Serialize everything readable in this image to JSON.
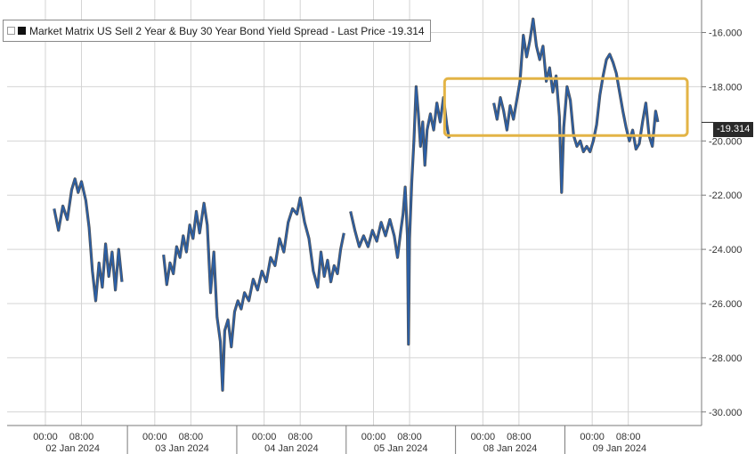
{
  "legend": {
    "text": "Market Matrix US Sell 2 Year & Buy 30 Year Bond Yield Spread - Last Price -19.314"
  },
  "last_price_tag": "-19.314",
  "colors": {
    "series": "#2b5fa6",
    "series_shadow": "#1a1a1a",
    "highlight_box": "#e3b446",
    "grid": "#d4d4d4",
    "axis": "#7a7a7a"
  },
  "chart_data": {
    "type": "line",
    "title": "",
    "xlabel": "",
    "ylabel": "",
    "ylim": [
      -30.5,
      -14.8
    ],
    "yticks": [
      -16,
      -18,
      -20,
      -22,
      -24,
      -26,
      -28,
      -30
    ],
    "ytick_labels": [
      "-16.000",
      "-18.000",
      "-20.000",
      "-22.000",
      "-24.000",
      "-26.000",
      "-28.000",
      "-30.000"
    ],
    "xlim": [
      -0.1,
      6.25
    ],
    "day_labels": [
      {
        "x": 0.5,
        "label": "02 Jan 2024"
      },
      {
        "x": 1.5,
        "label": "03 Jan 2024"
      },
      {
        "x": 2.5,
        "label": "04 Jan 2024"
      },
      {
        "x": 3.5,
        "label": "05 Jan 2024"
      },
      {
        "x": 4.5,
        "label": "08 Jan 2024"
      },
      {
        "x": 5.5,
        "label": "09 Jan 2024"
      }
    ],
    "time_ticks": [
      {
        "x": 0.25,
        "label": "00:00"
      },
      {
        "x": 0.58,
        "label": "08:00"
      },
      {
        "x": 1.25,
        "label": "00:00"
      },
      {
        "x": 1.58,
        "label": "08:00"
      },
      {
        "x": 2.25,
        "label": "00:00"
      },
      {
        "x": 2.58,
        "label": "08:00"
      },
      {
        "x": 3.25,
        "label": "00:00"
      },
      {
        "x": 3.58,
        "label": "08:00"
      },
      {
        "x": 4.25,
        "label": "00:00"
      },
      {
        "x": 4.58,
        "label": "08:00"
      },
      {
        "x": 5.25,
        "label": "00:00"
      },
      {
        "x": 5.58,
        "label": "08:00"
      }
    ],
    "series": [
      {
        "name": "Market Matrix US Sell 2 Year & Buy 30 Year Bond Yield Spread",
        "segments": [
          [
            [
              0.33,
              -22.5
            ],
            [
              0.37,
              -23.3
            ],
            [
              0.41,
              -22.4
            ],
            [
              0.45,
              -22.9
            ],
            [
              0.49,
              -21.8
            ],
            [
              0.52,
              -21.4
            ],
            [
              0.55,
              -21.9
            ],
            [
              0.58,
              -21.5
            ],
            [
              0.62,
              -22.2
            ],
            [
              0.65,
              -23.2
            ],
            [
              0.68,
              -24.8
            ],
            [
              0.71,
              -25.9
            ],
            [
              0.74,
              -24.5
            ],
            [
              0.77,
              -25.4
            ],
            [
              0.8,
              -23.8
            ],
            [
              0.83,
              -25.0
            ],
            [
              0.86,
              -24.1
            ],
            [
              0.89,
              -25.5
            ],
            [
              0.92,
              -24.0
            ],
            [
              0.95,
              -25.2
            ]
          ],
          [
            [
              1.33,
              -24.2
            ],
            [
              1.36,
              -25.3
            ],
            [
              1.39,
              -24.5
            ],
            [
              1.42,
              -24.9
            ],
            [
              1.45,
              -23.9
            ],
            [
              1.48,
              -24.3
            ],
            [
              1.51,
              -23.5
            ],
            [
              1.54,
              -24.1
            ],
            [
              1.57,
              -23.1
            ],
            [
              1.6,
              -23.6
            ],
            [
              1.63,
              -22.6
            ],
            [
              1.66,
              -23.4
            ],
            [
              1.7,
              -22.3
            ],
            [
              1.73,
              -23.1
            ],
            [
              1.76,
              -25.6
            ],
            [
              1.79,
              -24.1
            ],
            [
              1.82,
              -26.5
            ],
            [
              1.85,
              -27.4
            ],
            [
              1.87,
              -29.2
            ],
            [
              1.89,
              -27.0
            ],
            [
              1.92,
              -26.6
            ],
            [
              1.95,
              -27.6
            ],
            [
              1.98,
              -26.3
            ],
            [
              2.01,
              -25.9
            ],
            [
              2.04,
              -26.2
            ],
            [
              2.07,
              -25.6
            ],
            [
              2.11,
              -25.9
            ],
            [
              2.15,
              -25.1
            ],
            [
              2.19,
              -25.5
            ],
            [
              2.23,
              -24.8
            ],
            [
              2.27,
              -25.2
            ],
            [
              2.31,
              -24.3
            ],
            [
              2.35,
              -24.6
            ],
            [
              2.39,
              -23.6
            ],
            [
              2.43,
              -24.1
            ],
            [
              2.47,
              -23.0
            ],
            [
              2.51,
              -22.5
            ],
            [
              2.55,
              -22.7
            ],
            [
              2.58,
              -22.1
            ],
            [
              2.62,
              -23.0
            ],
            [
              2.66,
              -23.6
            ],
            [
              2.7,
              -24.8
            ],
            [
              2.74,
              -25.4
            ],
            [
              2.77,
              -24.1
            ],
            [
              2.8,
              -25.0
            ],
            [
              2.83,
              -24.4
            ],
            [
              2.86,
              -25.2
            ],
            [
              2.89,
              -24.6
            ],
            [
              2.92,
              -24.9
            ],
            [
              2.95,
              -24.0
            ],
            [
              2.98,
              -23.4
            ]
          ],
          [
            [
              3.04,
              -22.6
            ],
            [
              3.08,
              -23.3
            ],
            [
              3.12,
              -23.9
            ],
            [
              3.16,
              -23.5
            ],
            [
              3.2,
              -23.9
            ],
            [
              3.24,
              -23.3
            ],
            [
              3.28,
              -23.7
            ],
            [
              3.32,
              -23.0
            ],
            [
              3.36,
              -23.5
            ],
            [
              3.4,
              -22.9
            ],
            [
              3.44,
              -23.5
            ],
            [
              3.47,
              -24.3
            ],
            [
              3.5,
              -23.3
            ],
            [
              3.52,
              -22.7
            ],
            [
              3.54,
              -21.7
            ],
            [
              3.56,
              -23.5
            ],
            [
              3.57,
              -27.5
            ],
            [
              3.58,
              -23.6
            ],
            [
              3.6,
              -21.5
            ],
            [
              3.62,
              -20.0
            ],
            [
              3.64,
              -18.0
            ],
            [
              3.66,
              -19.0
            ],
            [
              3.68,
              -20.2
            ],
            [
              3.7,
              -19.3
            ],
            [
              3.72,
              -20.9
            ],
            [
              3.74,
              -19.6
            ],
            [
              3.77,
              -19.0
            ],
            [
              3.8,
              -19.6
            ],
            [
              3.83,
              -18.6
            ],
            [
              3.86,
              -19.3
            ],
            [
              3.89,
              -18.4
            ],
            [
              3.92,
              -19.4
            ],
            [
              3.94,
              -19.9
            ]
          ],
          [
            [
              4.35,
              -18.6
            ],
            [
              4.38,
              -19.2
            ],
            [
              4.41,
              -18.4
            ],
            [
              4.44,
              -18.9
            ],
            [
              4.47,
              -19.6
            ],
            [
              4.5,
              -18.7
            ],
            [
              4.53,
              -19.2
            ],
            [
              4.56,
              -18.5
            ],
            [
              4.59,
              -17.8
            ],
            [
              4.62,
              -16.1
            ],
            [
              4.65,
              -16.9
            ],
            [
              4.68,
              -16.3
            ],
            [
              4.71,
              -15.5
            ],
            [
              4.74,
              -16.5
            ],
            [
              4.77,
              -17.0
            ],
            [
              4.8,
              -16.5
            ],
            [
              4.83,
              -17.8
            ],
            [
              4.86,
              -17.3
            ],
            [
              4.89,
              -18.2
            ],
            [
              4.92,
              -17.6
            ],
            [
              4.95,
              -19.1
            ],
            [
              4.97,
              -21.9
            ],
            [
              4.99,
              -19.5
            ],
            [
              5.02,
              -18.0
            ],
            [
              5.05,
              -18.5
            ],
            [
              5.08,
              -19.8
            ],
            [
              5.11,
              -20.2
            ],
            [
              5.14,
              -20.0
            ],
            [
              5.17,
              -20.4
            ],
            [
              5.2,
              -20.2
            ],
            [
              5.23,
              -20.4
            ],
            [
              5.26,
              -20.0
            ],
            [
              5.29,
              -19.4
            ],
            [
              5.32,
              -18.3
            ],
            [
              5.35,
              -17.6
            ],
            [
              5.38,
              -17.0
            ],
            [
              5.41,
              -16.8
            ],
            [
              5.44,
              -17.1
            ],
            [
              5.47,
              -17.5
            ],
            [
              5.5,
              -18.2
            ],
            [
              5.53,
              -18.9
            ],
            [
              5.56,
              -19.5
            ],
            [
              5.59,
              -20.0
            ],
            [
              5.62,
              -19.6
            ],
            [
              5.65,
              -20.3
            ],
            [
              5.68,
              -20.1
            ],
            [
              5.71,
              -19.3
            ],
            [
              5.74,
              -18.6
            ],
            [
              5.77,
              -19.8
            ],
            [
              5.8,
              -20.2
            ],
            [
              5.83,
              -18.9
            ],
            [
              5.85,
              -19.3
            ]
          ]
        ]
      }
    ],
    "annotations": [
      {
        "type": "box",
        "x0": 3.9,
        "x1": 6.12,
        "y0": -19.8,
        "y1": -17.7
      }
    ]
  }
}
